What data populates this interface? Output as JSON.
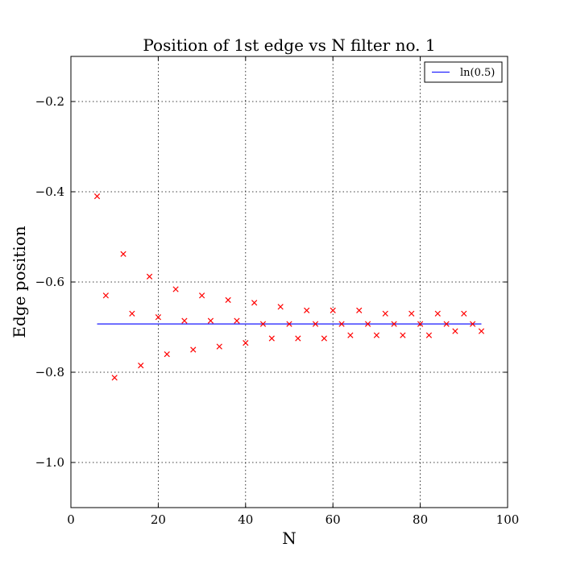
{
  "chart_data": {
    "type": "scatter",
    "title": "Position of 1st edge vs N filter no. 1",
    "xlabel": "N",
    "ylabel": "Edge position",
    "xlim": [
      0,
      100
    ],
    "ylim": [
      -1.1,
      -0.1
    ],
    "xticks": [
      0,
      20,
      40,
      60,
      80,
      100
    ],
    "xtick_labels": [
      "0",
      "20",
      "40",
      "60",
      "80",
      "100"
    ],
    "yticks": [
      -1.0,
      -0.8,
      -0.6,
      -0.4,
      -0.2
    ],
    "ytick_labels": [
      "−1.0",
      "−0.8",
      "−0.6",
      "−0.4",
      "−0.2"
    ],
    "grid": true,
    "legend_position": "top-right",
    "points": {
      "marker": "x",
      "color": "#ff0000",
      "x": [
        6,
        8,
        10,
        12,
        14,
        16,
        18,
        20,
        22,
        24,
        26,
        28,
        30,
        32,
        34,
        36,
        38,
        40,
        42,
        44,
        46,
        48,
        50,
        52,
        54,
        56,
        58,
        60,
        62,
        64,
        66,
        68,
        70,
        72,
        74,
        76,
        78,
        80,
        82,
        84,
        86,
        88,
        90,
        92,
        94
      ],
      "y": [
        -0.41,
        -0.63,
        -0.812,
        -0.538,
        -0.67,
        -0.785,
        -0.588,
        -0.678,
        -0.76,
        -0.616,
        -0.686,
        -0.75,
        -0.63,
        -0.686,
        -0.743,
        -0.64,
        -0.686,
        -0.735,
        -0.646,
        -0.693,
        -0.725,
        -0.655,
        -0.693,
        -0.725,
        -0.663,
        -0.693,
        -0.725,
        -0.663,
        -0.693,
        -0.718,
        -0.663,
        -0.693,
        -0.718,
        -0.67,
        -0.693,
        -0.718,
        -0.67,
        -0.693,
        -0.718,
        -0.67,
        -0.693,
        -0.709,
        -0.67,
        -0.693,
        -0.709
      ]
    },
    "series": [
      {
        "name": "ln(0.5)",
        "color": "#0000ff",
        "type": "line",
        "x": [
          6,
          94
        ],
        "y": [
          -0.693,
          -0.693
        ]
      }
    ]
  }
}
